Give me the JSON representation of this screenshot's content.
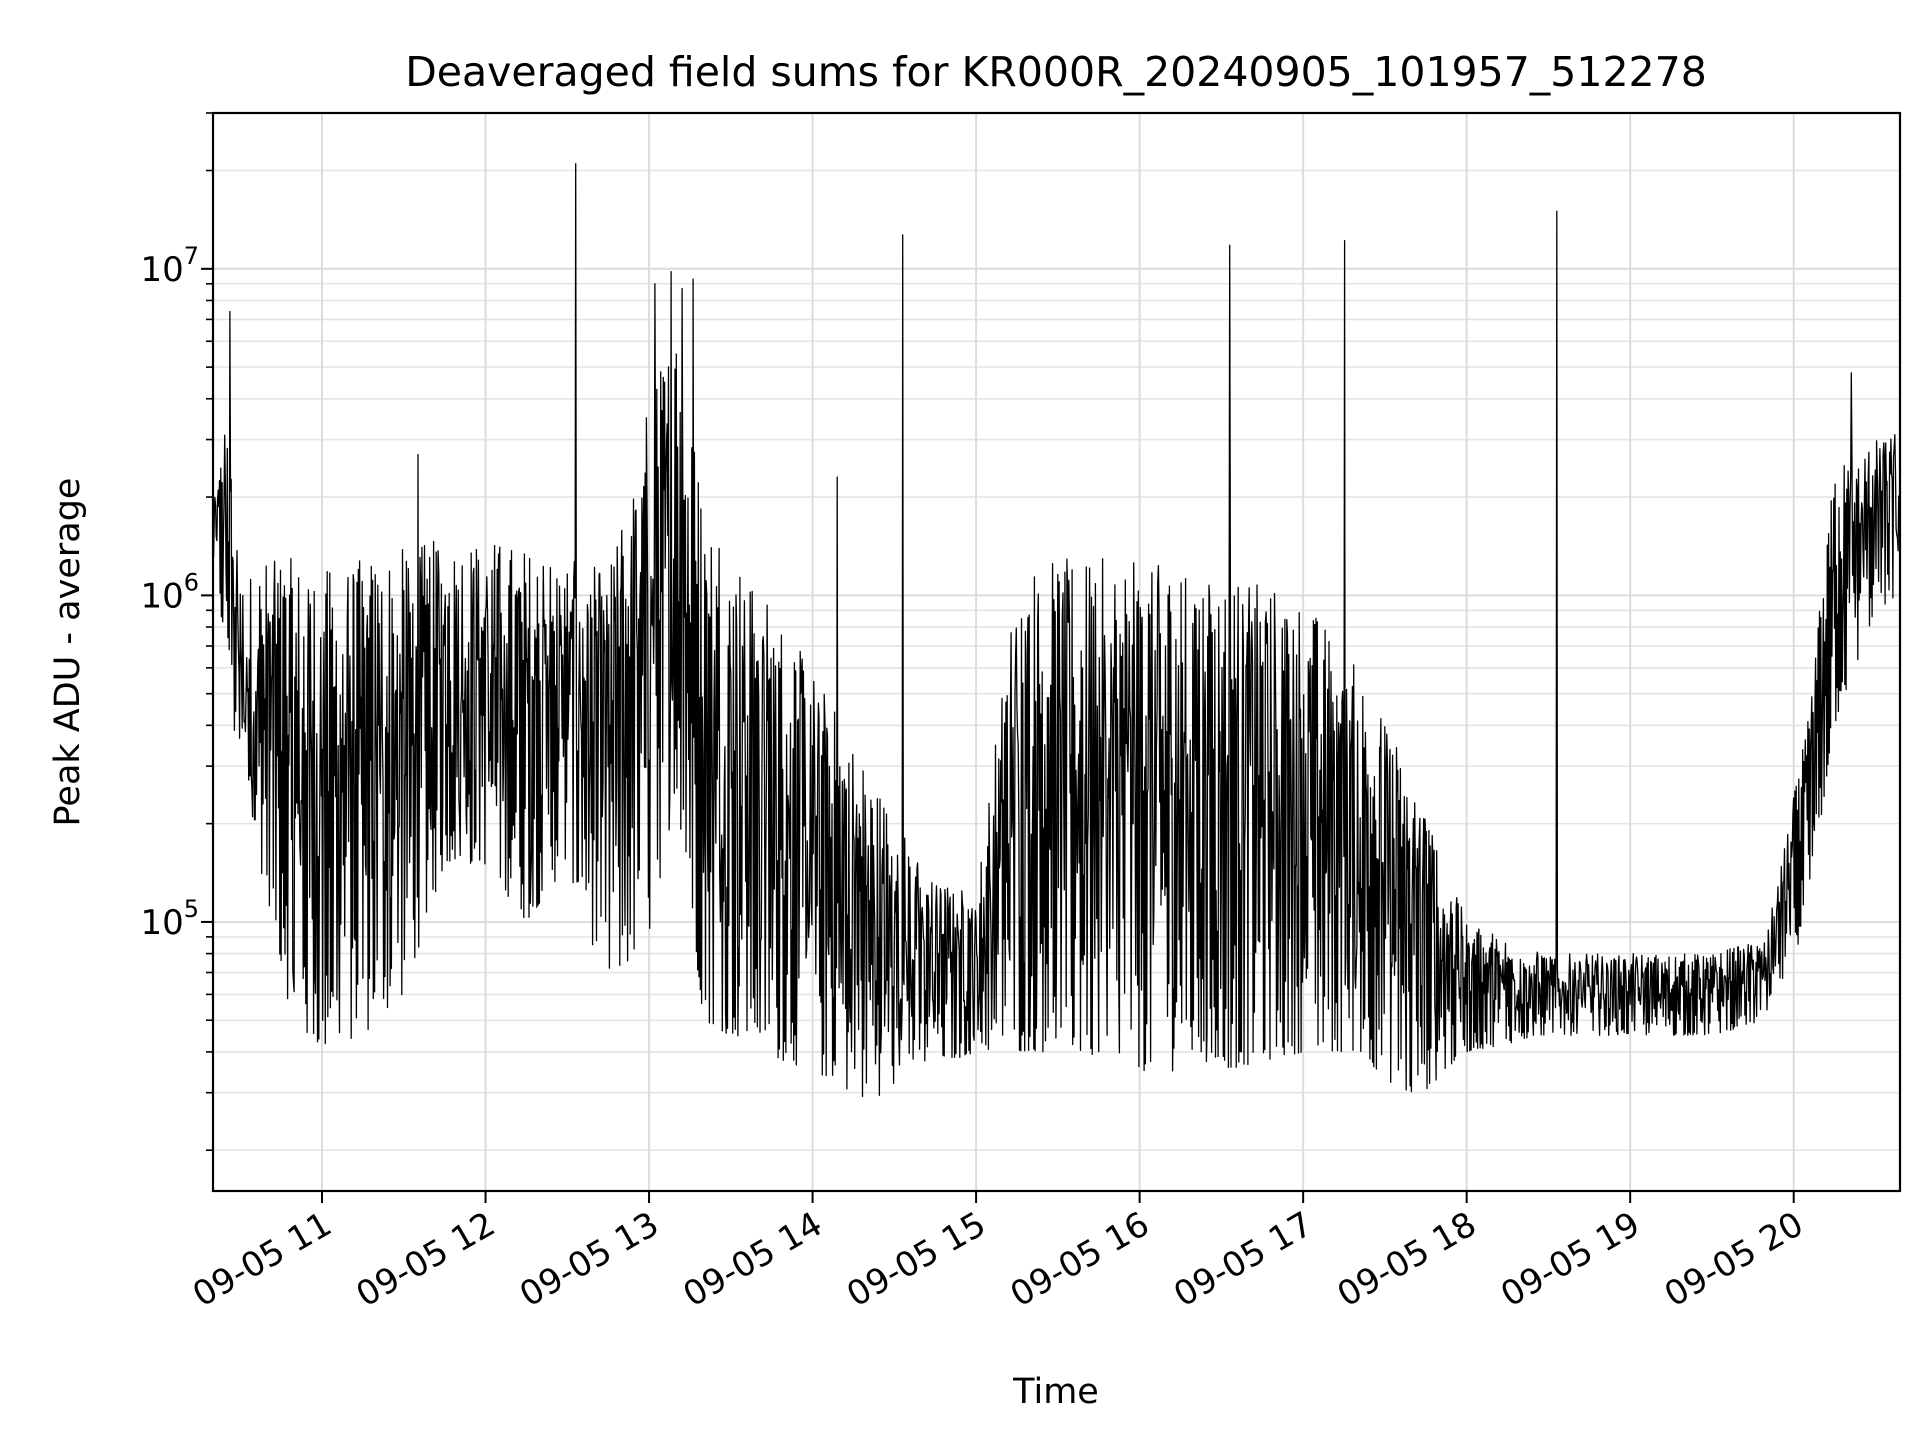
{
  "chart_data": {
    "type": "line",
    "title": "Deaveraged field sums for KR000R_20240905_101957_512278",
    "xlabel": "Time",
    "ylabel": "Peak ADU - average",
    "y_scale": "log",
    "xlim": [
      "09-05 10:20",
      "09-05 20:39"
    ],
    "ylim": [
      15000,
      30000000
    ],
    "grid": true,
    "line_color": "#000000",
    "x_ticks": [
      "09-05 11",
      "09-05 12",
      "09-05 13",
      "09-05 14",
      "09-05 15",
      "09-05 16",
      "09-05 17",
      "09-05 18",
      "09-05 19",
      "09-05 20"
    ],
    "y_ticks": [
      {
        "base": "10",
        "exponent": "5",
        "value": 100000
      },
      {
        "base": "10",
        "exponent": "6",
        "value": 1000000
      },
      {
        "base": "10",
        "exponent": "7",
        "value": 10000000
      }
    ],
    "series": [
      {
        "name": "",
        "note": "Dense noisy trace, approximated by envelope anchor points (time, low ADU, high ADU)",
        "envelope": [
          {
            "t": "09-05 10:20",
            "low": 1300000,
            "high": 1800000
          },
          {
            "t": "09-05 10:25",
            "low": 600000,
            "high": 3800000
          },
          {
            "t": "09-05 10:30",
            "low": 250000,
            "high": 1100000
          },
          {
            "t": "09-05 10:40",
            "low": 120000,
            "high": 1300000
          },
          {
            "t": "09-05 10:50",
            "low": 45000,
            "high": 1300000
          },
          {
            "t": "09-05 11:00",
            "low": 40000,
            "high": 1200000
          },
          {
            "t": "09-05 11:15",
            "low": 45000,
            "high": 1300000
          },
          {
            "t": "09-05 11:30",
            "low": 60000,
            "high": 1400000
          },
          {
            "t": "09-05 11:45",
            "low": 150000,
            "high": 1500000
          },
          {
            "t": "09-05 12:00",
            "low": 150000,
            "high": 1500000
          },
          {
            "t": "09-05 12:15",
            "low": 100000,
            "high": 1400000
          },
          {
            "t": "09-05 12:30",
            "low": 150000,
            "high": 1300000
          },
          {
            "t": "09-05 12:45",
            "low": 60000,
            "high": 1200000
          },
          {
            "t": "09-05 13:00",
            "low": 90000,
            "high": 4000000
          },
          {
            "t": "09-05 13:10",
            "low": 250000,
            "high": 7000000
          },
          {
            "t": "09-05 13:20",
            "low": 50000,
            "high": 2000000
          },
          {
            "t": "09-05 13:40",
            "low": 40000,
            "high": 1100000
          },
          {
            "t": "09-05 14:00",
            "low": 35000,
            "high": 600000
          },
          {
            "t": "09-05 14:20",
            "low": 28000,
            "high": 300000
          },
          {
            "t": "09-05 14:40",
            "low": 35000,
            "high": 150000
          },
          {
            "t": "09-05 15:00",
            "low": 40000,
            "high": 120000
          },
          {
            "t": "09-05 15:15",
            "low": 40000,
            "high": 1200000
          },
          {
            "t": "09-05 15:30",
            "low": 40000,
            "high": 1300000
          },
          {
            "t": "09-05 16:00",
            "low": 35000,
            "high": 1300000
          },
          {
            "t": "09-05 16:30",
            "low": 35000,
            "high": 1200000
          },
          {
            "t": "09-05 17:00",
            "low": 40000,
            "high": 1000000
          },
          {
            "t": "09-05 17:20",
            "low": 40000,
            "high": 600000
          },
          {
            "t": "09-05 17:40",
            "low": 28000,
            "high": 300000
          },
          {
            "t": "09-05 18:00",
            "low": 40000,
            "high": 100000
          },
          {
            "t": "09-05 18:30",
            "low": 45000,
            "high": 80000
          },
          {
            "t": "09-05 19:00",
            "low": 45000,
            "high": 80000
          },
          {
            "t": "09-05 19:30",
            "low": 45000,
            "high": 80000
          },
          {
            "t": "09-05 19:50",
            "low": 50000,
            "high": 90000
          },
          {
            "t": "09-05 20:05",
            "low": 100000,
            "high": 400000
          },
          {
            "t": "09-05 20:15",
            "low": 400000,
            "high": 2500000
          },
          {
            "t": "09-05 20:30",
            "low": 900000,
            "high": 3000000
          },
          {
            "t": "09-05 20:39",
            "low": 1000000,
            "high": 3200000
          }
        ],
        "spikes": [
          {
            "t": "09-05 10:26",
            "value": 7400000
          },
          {
            "t": "09-05 11:35",
            "value": 2700000
          },
          {
            "t": "09-05 12:33",
            "value": 21000000
          },
          {
            "t": "09-05 13:02",
            "value": 9000000
          },
          {
            "t": "09-05 13:08",
            "value": 9800000
          },
          {
            "t": "09-05 13:12",
            "value": 8700000
          },
          {
            "t": "09-05 13:16",
            "value": 9300000
          },
          {
            "t": "09-05 14:09",
            "value": 2300000
          },
          {
            "t": "09-05 14:33",
            "value": 12700000
          },
          {
            "t": "09-05 16:33",
            "value": 11800000
          },
          {
            "t": "09-05 17:15",
            "value": 12200000
          },
          {
            "t": "09-05 18:33",
            "value": 15000000
          },
          {
            "t": "09-05 20:21",
            "value": 4800000
          }
        ]
      }
    ]
  }
}
